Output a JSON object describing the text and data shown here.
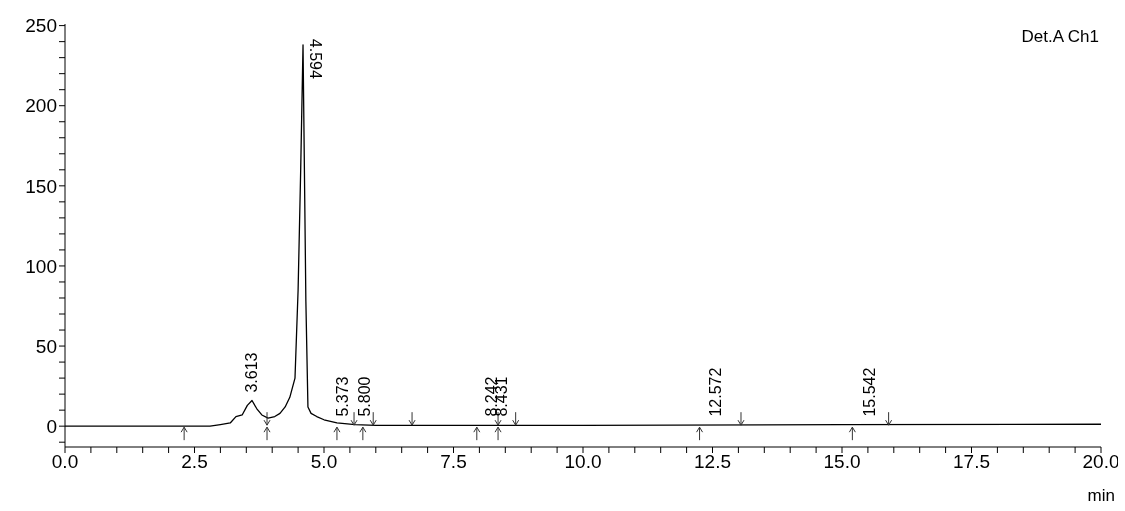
{
  "chart_data": {
    "type": "line",
    "xlabel": "min",
    "annotations": [
      "Det.A Ch1",
      {
        "text": "3.613",
        "x": 3.613,
        "y": 16
      },
      {
        "text": "4.594",
        "x": 4.594,
        "y": 238
      },
      {
        "text": "5.373",
        "x": 5.373,
        "y": 1
      },
      {
        "text": "5.800",
        "x": 5.8,
        "y": 1
      },
      {
        "text": "8.242",
        "x": 8.242,
        "y": 1
      },
      {
        "text": "8.431",
        "x": 8.431,
        "y": 1
      },
      {
        "text": "12.572",
        "x": 12.572,
        "y": 1
      },
      {
        "text": "15.542",
        "x": 15.542,
        "y": 1
      }
    ],
    "series": [
      {
        "color": "#000000",
        "x": [
          0,
          2.8,
          3.0,
          3.19,
          3.3,
          3.42,
          3.52,
          3.61,
          3.7,
          3.8,
          3.92,
          4.05,
          4.15,
          4.25,
          4.34,
          4.44,
          4.5,
          4.55,
          4.595,
          4.65,
          4.69,
          4.75,
          4.86,
          5.0,
          5.25,
          5.6,
          6.0,
          7.0,
          10.0,
          15.0,
          20.0
        ],
        "values": [
          0,
          0,
          1,
          2,
          6,
          7,
          13,
          16,
          11,
          7,
          5,
          6,
          8,
          12,
          18,
          30,
          85,
          160,
          238,
          78,
          12,
          8,
          6,
          4,
          2,
          1,
          0.5,
          0.5,
          0.5,
          1,
          1.2
        ]
      }
    ],
    "xlim": [
      0,
      20
    ],
    "ylim": [
      -13,
      251
    ],
    "xticks": [
      {
        "value": 0,
        "label": "0.0"
      },
      {
        "value": 0.5,
        "label": null
      },
      {
        "value": 1,
        "label": null
      },
      {
        "value": 1.5,
        "label": null
      },
      {
        "value": 2,
        "label": null
      },
      {
        "value": 2.5,
        "label": "2.5"
      },
      {
        "value": 3,
        "label": null
      },
      {
        "value": 3.5,
        "label": null
      },
      {
        "value": 4,
        "label": null
      },
      {
        "value": 4.5,
        "label": null
      },
      {
        "value": 5,
        "label": "5.0"
      },
      {
        "value": 5.5,
        "label": null
      },
      {
        "value": 6,
        "label": null
      },
      {
        "value": 6.5,
        "label": null
      },
      {
        "value": 7,
        "label": null
      },
      {
        "value": 7.5,
        "label": "7.5"
      },
      {
        "value": 8,
        "label": null
      },
      {
        "value": 8.5,
        "label": null
      },
      {
        "value": 9,
        "label": null
      },
      {
        "value": 9.5,
        "label": null
      },
      {
        "value": 10,
        "label": "10.0"
      },
      {
        "value": 10.5,
        "label": null
      },
      {
        "value": 11,
        "label": null
      },
      {
        "value": 11.5,
        "label": null
      },
      {
        "value": 12,
        "label": null
      },
      {
        "value": 12.5,
        "label": "12.5"
      },
      {
        "value": 13,
        "label": null
      },
      {
        "value": 13.5,
        "label": null
      },
      {
        "value": 14,
        "label": null
      },
      {
        "value": 14.5,
        "label": null
      },
      {
        "value": 15,
        "label": "15.0"
      },
      {
        "value": 15.5,
        "label": null
      },
      {
        "value": 16,
        "label": null
      },
      {
        "value": 16.5,
        "label": null
      },
      {
        "value": 17,
        "label": null
      },
      {
        "value": 17.5,
        "label": "17.5"
      },
      {
        "value": 18,
        "label": null
      },
      {
        "value": 18.5,
        "label": null
      },
      {
        "value": 19,
        "label": null
      },
      {
        "value": 19.5,
        "label": null
      },
      {
        "value": 20,
        "label": "20.0"
      }
    ],
    "yticks": [
      {
        "value": -10,
        "label": null
      },
      0,
      {
        "value": 10,
        "label": null
      },
      {
        "value": 20,
        "label": null
      },
      {
        "value": 30,
        "label": null
      },
      {
        "value": 40,
        "label": null
      },
      50,
      {
        "value": 60,
        "label": null
      },
      {
        "value": 70,
        "label": null
      },
      {
        "value": 80,
        "label": null
      },
      {
        "value": 90,
        "label": null
      },
      100,
      {
        "value": 110,
        "label": null
      },
      {
        "value": 120,
        "label": null
      },
      {
        "value": 130,
        "label": null
      },
      {
        "value": 140,
        "label": null
      },
      150,
      {
        "value": 160,
        "label": null
      },
      {
        "value": 170,
        "label": null
      },
      {
        "value": 180,
        "label": null
      },
      {
        "value": 190,
        "label": null
      },
      200,
      {
        "value": 210,
        "label": null
      },
      {
        "value": 220,
        "label": null
      },
      {
        "value": 230,
        "label": null
      },
      {
        "value": 240,
        "label": null
      },
      250
    ],
    "grid": false,
    "legend": false,
    "marker": "none",
    "line_style": "solid"
  }
}
